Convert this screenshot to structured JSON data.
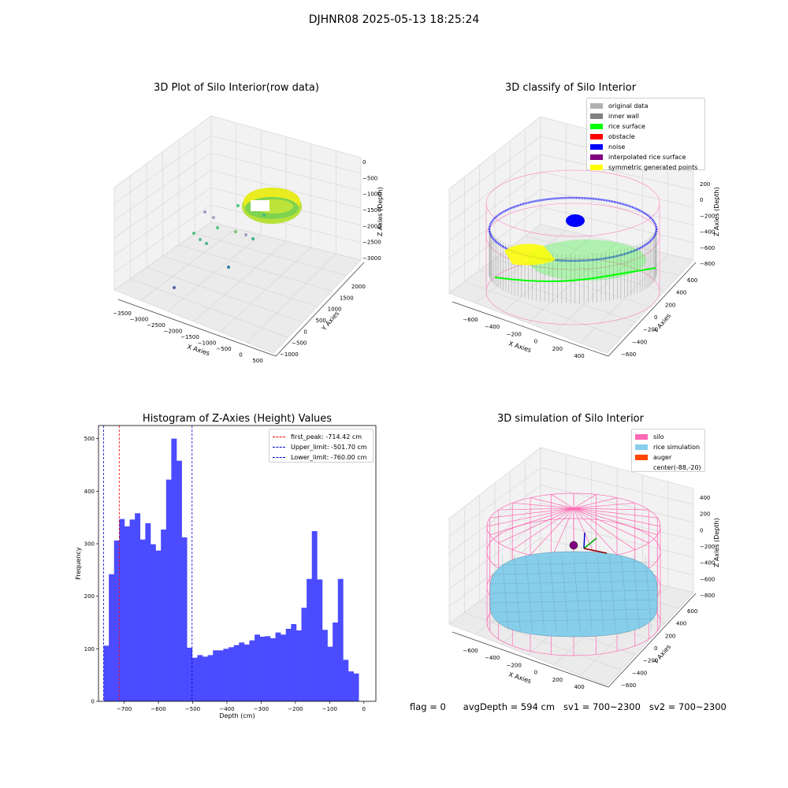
{
  "suptitle": "DJHNR08 2025-05-13 18:25:24",
  "colors": {
    "hist_bar": "#4b4bff",
    "first_peak_line": "#ff0000",
    "limit_line": "#0000cc",
    "silo_wire": "#ff69b4",
    "rice": "#87ceeb",
    "auger": "#ff4500",
    "rice_surface": "#00ff00",
    "noise": "#0000ff",
    "wall": "#808080",
    "symmetric": "#ffff00"
  },
  "footer": {
    "flag": "flag = 0",
    "avg": "avgDepth = 594 cm",
    "sv1": "sv1 = 700~2300",
    "sv2": "sv2 = 700~2300"
  },
  "chart_data": [
    {
      "type": "scatter",
      "title": "3D Plot of Silo Interior(row data)",
      "xlabel": "X Axies",
      "ylabel": "Y Axies",
      "zlabel": "Z Axies (Depth)",
      "x_ticks": [
        "−3500",
        "−3000",
        "−2500",
        "−2000",
        "−1500",
        "−1000",
        "−500",
        "0",
        "500"
      ],
      "y_ticks": [
        "−1000",
        "−500",
        "0",
        "500",
        "1000",
        "1500",
        "2000"
      ],
      "z_ticks": [
        "0",
        "−500",
        "−1000",
        "−1500",
        "−2000",
        "−2500",
        "−3000"
      ]
    },
    {
      "type": "scatter",
      "title": "3D classify of Silo Interior",
      "xlabel": "X Axies",
      "ylabel": "Y Axies",
      "zlabel": "Z Axies (Depth)",
      "x_ticks": [
        "−600",
        "−400",
        "−200",
        "0",
        "200",
        "400"
      ],
      "y_ticks": [
        "−600",
        "−400",
        "−200",
        "0",
        "200",
        "400",
        "600"
      ],
      "z_ticks": [
        "200",
        "0",
        "−200",
        "−400",
        "−600",
        "−800"
      ],
      "legend": [
        {
          "label": "original data",
          "color": "#b0b0b0"
        },
        {
          "label": "inner wall",
          "color": "#808080"
        },
        {
          "label": "rice surface",
          "color": "#00ff00"
        },
        {
          "label": "obstacle",
          "color": "#ff0000"
        },
        {
          "label": "noise",
          "color": "#0000ff"
        },
        {
          "label": "interpolated rice surface",
          "color": "#800080"
        },
        {
          "label": "symmetric generated points",
          "color": "#ffff00"
        }
      ]
    },
    {
      "type": "bar",
      "title": "Histogram of Z-Axies (Height) Values",
      "xlabel": "Depth (cm)",
      "ylabel": "Frequency",
      "xlim": [
        -775,
        35
      ],
      "ylim": [
        0,
        525
      ],
      "x_ticks": [
        -700,
        -600,
        -500,
        -400,
        -300,
        -200,
        -100,
        0
      ],
      "x_tick_labels": [
        "−700",
        "−600",
        "−500",
        "−400",
        "−300",
        "−200",
        "−100",
        "0"
      ],
      "y_ticks": [
        0,
        100,
        200,
        300,
        400,
        500
      ],
      "y_tick_labels": [
        "0",
        "100",
        "200",
        "300",
        "400",
        "500"
      ],
      "bin_start": -760,
      "bin_width": 15.2,
      "values": [
        106,
        242,
        306,
        347,
        333,
        346,
        358,
        308,
        339,
        299,
        287,
        327,
        422,
        500,
        458,
        312,
        102,
        83,
        88,
        85,
        88,
        97,
        97,
        100,
        103,
        107,
        112,
        108,
        116,
        127,
        123,
        124,
        120,
        131,
        127,
        138,
        147,
        135,
        178,
        233,
        324,
        232,
        136,
        104,
        150,
        233,
        79,
        57,
        53
      ],
      "lines": [
        {
          "x": -714.42,
          "label": "first_peak: -714.42 cm",
          "style": "first_peak"
        },
        {
          "x": -501.7,
          "label": "Upper_limit: -501.70 cm",
          "style": "limit"
        },
        {
          "x": -760.0,
          "label": "Lower_limit: -760.00 cm",
          "style": "limit"
        }
      ]
    },
    {
      "type": "area",
      "title": "3D simulation of Silo Interior",
      "xlabel": "X Axies",
      "ylabel": "Y Axies",
      "zlabel": "Z Axies (Depth)",
      "x_ticks": [
        "−600",
        "−400",
        "−200",
        "0",
        "200",
        "400"
      ],
      "y_ticks": [
        "−600",
        "−400",
        "−200",
        "0",
        "200",
        "400",
        "600"
      ],
      "z_ticks": [
        "400",
        "200",
        "0",
        "−200",
        "−400",
        "−600",
        "−800"
      ],
      "legend": [
        {
          "label": "silo",
          "color": "#ff69b4"
        },
        {
          "label": "rice simulation",
          "color": "#87ceeb"
        },
        {
          "label": "auger",
          "color": "#ff4500"
        },
        {
          "label": "center(-88,-20)",
          "color": ""
        }
      ]
    }
  ]
}
